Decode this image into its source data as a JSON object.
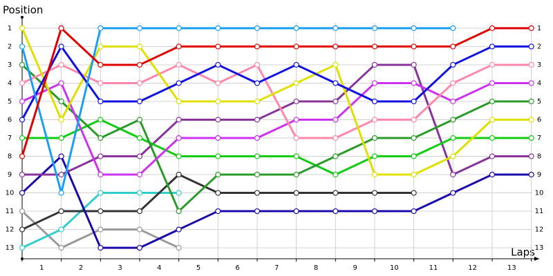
{
  "chart_data": {
    "type": "line",
    "title": "Position",
    "x_label": "Laps",
    "x": [
      0,
      1,
      2,
      3,
      4,
      5,
      6,
      7,
      8,
      9,
      10,
      11,
      12,
      13
    ],
    "xlim": [
      0,
      13.2
    ],
    "xticks": [
      {
        "value": 0.5,
        "label": "1"
      },
      {
        "value": 1.5,
        "label": "2"
      },
      {
        "value": 2.5,
        "label": "3"
      },
      {
        "value": 3.5,
        "label": "4"
      },
      {
        "value": 4.5,
        "label": "5"
      },
      {
        "value": 5.5,
        "label": "6"
      },
      {
        "value": 6.5,
        "label": "7"
      },
      {
        "value": 7.5,
        "label": "8"
      },
      {
        "value": 8.5,
        "label": "9"
      },
      {
        "value": 9.5,
        "label": "10"
      },
      {
        "value": 10.5,
        "label": "11"
      },
      {
        "value": 11.5,
        "label": "12"
      },
      {
        "value": 12.5,
        "label": "13"
      }
    ],
    "ylim": [
      13.6,
      0.4
    ],
    "yticks": [
      1,
      2,
      3,
      4,
      5,
      6,
      7,
      8,
      9,
      10,
      11,
      12,
      13
    ],
    "grid": true,
    "series": [
      {
        "color": "#999999",
        "values": [
          11,
          13,
          12,
          12,
          13,
          null,
          null,
          null,
          null,
          null,
          null,
          null,
          null,
          null
        ]
      },
      {
        "color": "#33cccc",
        "values": [
          13,
          12,
          10,
          10,
          10,
          null,
          null,
          null,
          null,
          null,
          null,
          null,
          null,
          null
        ]
      },
      {
        "color": "#333333",
        "values": [
          12,
          11,
          11,
          11,
          9,
          10,
          10,
          10,
          10,
          10,
          10,
          null,
          null,
          null
        ]
      },
      {
        "color": "#1a0aaa",
        "values": [
          10,
          8,
          13,
          13,
          12,
          11,
          11,
          11,
          11,
          11,
          11,
          10,
          9,
          9
        ]
      },
      {
        "color": "#883399",
        "values": [
          9,
          9,
          8,
          8,
          6,
          6,
          6,
          5,
          5,
          3,
          3,
          9,
          8,
          8
        ]
      },
      {
        "color": "#11cc11",
        "values": [
          7,
          7,
          6,
          7,
          8,
          8,
          8,
          8,
          9,
          8,
          8,
          7,
          7,
          7
        ]
      },
      {
        "color": "#2a9a2a",
        "values": [
          3,
          5,
          7,
          6,
          11,
          9,
          9,
          9,
          8,
          7,
          7,
          6,
          5,
          5
        ]
      },
      {
        "color": "#cc33ee",
        "values": [
          5,
          4,
          9,
          9,
          7,
          7,
          7,
          6,
          6,
          4,
          4,
          5,
          4,
          4
        ]
      },
      {
        "color": "#ff88aa",
        "values": [
          4,
          3,
          4,
          4,
          3,
          4,
          3,
          7,
          7,
          6,
          6,
          4,
          3,
          3
        ]
      },
      {
        "color": "#e0e000",
        "values": [
          1,
          6,
          2,
          2,
          5,
          5,
          5,
          4,
          3,
          9,
          9,
          8,
          6,
          6
        ]
      },
      {
        "color": "#1010e0",
        "values": [
          6,
          2,
          5,
          5,
          4,
          3,
          4,
          3,
          4,
          5,
          5,
          3,
          2,
          2
        ]
      },
      {
        "color": "#1a9ff0",
        "values": [
          2,
          10,
          1,
          1,
          1,
          1,
          1,
          1,
          1,
          1,
          1,
          1,
          null,
          null
        ]
      },
      {
        "color": "#e00000",
        "values": [
          8,
          1,
          3,
          3,
          2,
          2,
          2,
          2,
          2,
          2,
          2,
          2,
          1,
          1
        ]
      }
    ]
  }
}
